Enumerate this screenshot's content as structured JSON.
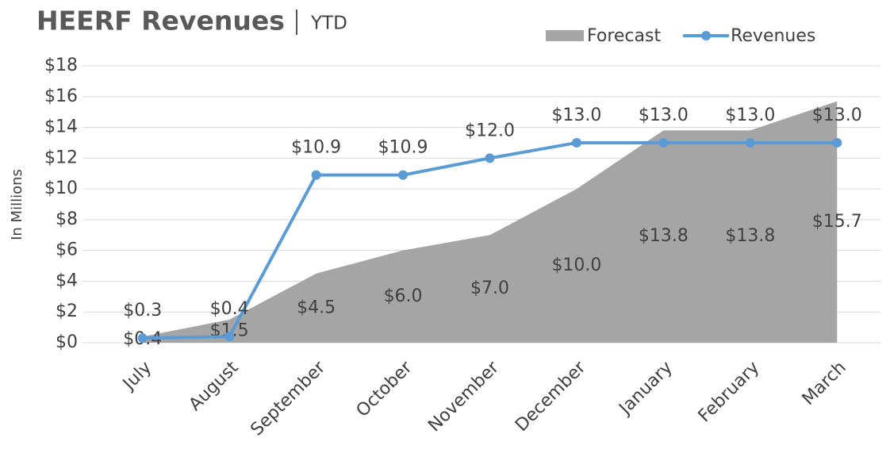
{
  "chart_data": {
    "type": "line_area",
    "title": "HEERF Revenues",
    "subtitle": "YTD",
    "y_label": "In Millions",
    "categories": [
      "July",
      "August",
      "September",
      "October",
      "November",
      "December",
      "January",
      "February",
      "March"
    ],
    "series": [
      {
        "name": "Forecast",
        "kind": "area",
        "color": "#a5a5a5",
        "values": [
          0.4,
          1.5,
          4.5,
          6.0,
          7.0,
          10.0,
          13.8,
          13.8,
          15.7
        ],
        "value_labels": [
          "$0.4",
          "$1.5",
          "$4.5",
          "$6.0",
          "$7.0",
          "$10.0",
          "$13.8",
          "$13.8",
          "$15.7"
        ]
      },
      {
        "name": "Revenues",
        "kind": "line",
        "color": "#5b9bd5",
        "values": [
          0.3,
          0.4,
          10.9,
          10.9,
          12.0,
          13.0,
          13.0,
          13.0,
          13.0
        ],
        "value_labels": [
          "$0.3",
          "$0.4",
          "$10.9",
          "$10.9",
          "$12.0",
          "$13.0",
          "$13.0",
          "$13.0",
          "$13.0"
        ]
      }
    ],
    "ylim": [
      0,
      18
    ],
    "yticks": [
      {
        "value": 0,
        "label": "$0"
      },
      {
        "value": 2,
        "label": "$2"
      },
      {
        "value": 4,
        "label": "$4"
      },
      {
        "value": 6,
        "label": "$6"
      },
      {
        "value": 8,
        "label": "$8"
      },
      {
        "value": 10,
        "label": "$10"
      },
      {
        "value": 12,
        "label": "$12"
      },
      {
        "value": 14,
        "label": "$14"
      },
      {
        "value": 16,
        "label": "$16"
      },
      {
        "value": 18,
        "label": "$18"
      }
    ],
    "grid": true,
    "legend": "top-right"
  }
}
